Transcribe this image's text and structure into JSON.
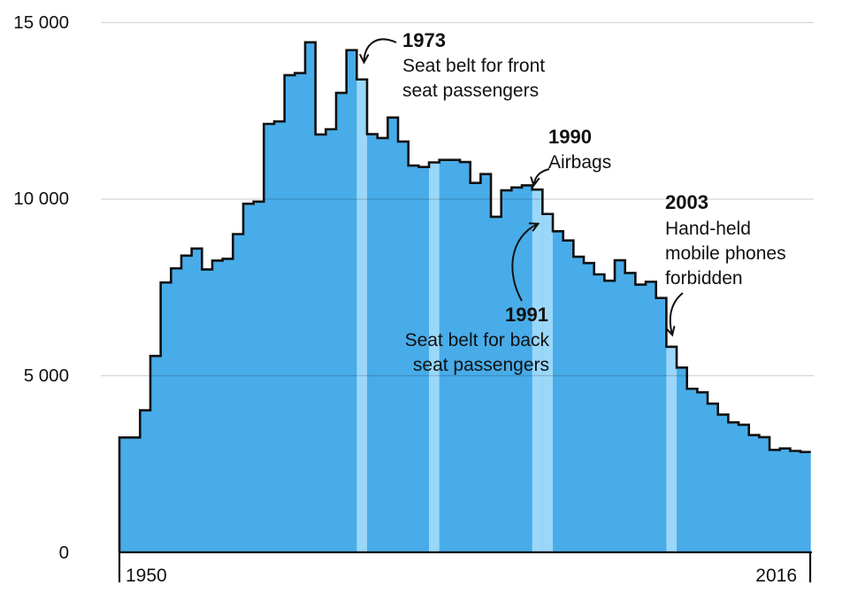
{
  "chart_data": {
    "type": "bar",
    "title": "",
    "xlabel": "",
    "ylabel": "",
    "x_range_labels": [
      "1950",
      "2016"
    ],
    "years": [
      1950,
      1951,
      1952,
      1953,
      1954,
      1955,
      1956,
      1957,
      1958,
      1959,
      1960,
      1961,
      1962,
      1963,
      1964,
      1965,
      1966,
      1967,
      1968,
      1969,
      1970,
      1971,
      1972,
      1973,
      1974,
      1975,
      1976,
      1977,
      1978,
      1979,
      1980,
      1981,
      1982,
      1983,
      1984,
      1985,
      1986,
      1987,
      1988,
      1989,
      1990,
      1991,
      1992,
      1993,
      1994,
      1995,
      1996,
      1997,
      1998,
      1999,
      2000,
      2001,
      2002,
      2003,
      2004,
      2005,
      2006,
      2007,
      2008,
      2009,
      2010,
      2011,
      2012,
      2013,
      2014,
      2015,
      2016
    ],
    "values": [
      3250,
      3250,
      4020,
      5560,
      7640,
      8040,
      8400,
      8600,
      8010,
      8260,
      8310,
      9010,
      9870,
      9930,
      12130,
      12200,
      13510,
      13570,
      14440,
      11830,
      11980,
      13010,
      14220,
      13390,
      11840,
      11730,
      12310,
      11630,
      10950,
      10910,
      11040,
      11110,
      11110,
      11050,
      10460,
      10710,
      9500,
      10250,
      10330,
      10390,
      10270,
      9580,
      9090,
      8830,
      8370,
      8190,
      7870,
      7690,
      8270,
      7910,
      7580,
      7660,
      7200,
      5820,
      5230,
      4630,
      4530,
      4210,
      3900,
      3680,
      3610,
      3320,
      3260,
      2900,
      2940,
      2870,
      2840
    ],
    "highlighted_years": [
      1973,
      1980,
      1990,
      1991,
      2003
    ],
    "ylim": [
      0,
      15000
    ],
    "yticks": [
      0,
      5000,
      10000,
      15000
    ],
    "grid": "horizontal"
  },
  "axis": {
    "y_labels": [
      "15 000",
      "10 000",
      "5 000",
      "0"
    ],
    "x_start_label": "1950",
    "x_end_label": "2016"
  },
  "annotations": [
    {
      "year": "1973",
      "lines": [
        "Seat belt for front",
        "seat passengers"
      ]
    },
    {
      "year": "1990",
      "lines": [
        "Airbags"
      ]
    },
    {
      "year": "1991",
      "lines": [
        "Seat belt for back",
        "seat passengers"
      ]
    },
    {
      "year": "2003",
      "lines": [
        "Hand-held",
        "mobile phones",
        "forbidden"
      ]
    }
  ],
  "colors": {
    "bar_fill": "#48ACE9",
    "bar_highlight_fill": "#9BD7F8",
    "outline": "#111111",
    "gridline": "rgba(0,0,0,0.16)",
    "axis": "#111111",
    "text": "#111111"
  }
}
